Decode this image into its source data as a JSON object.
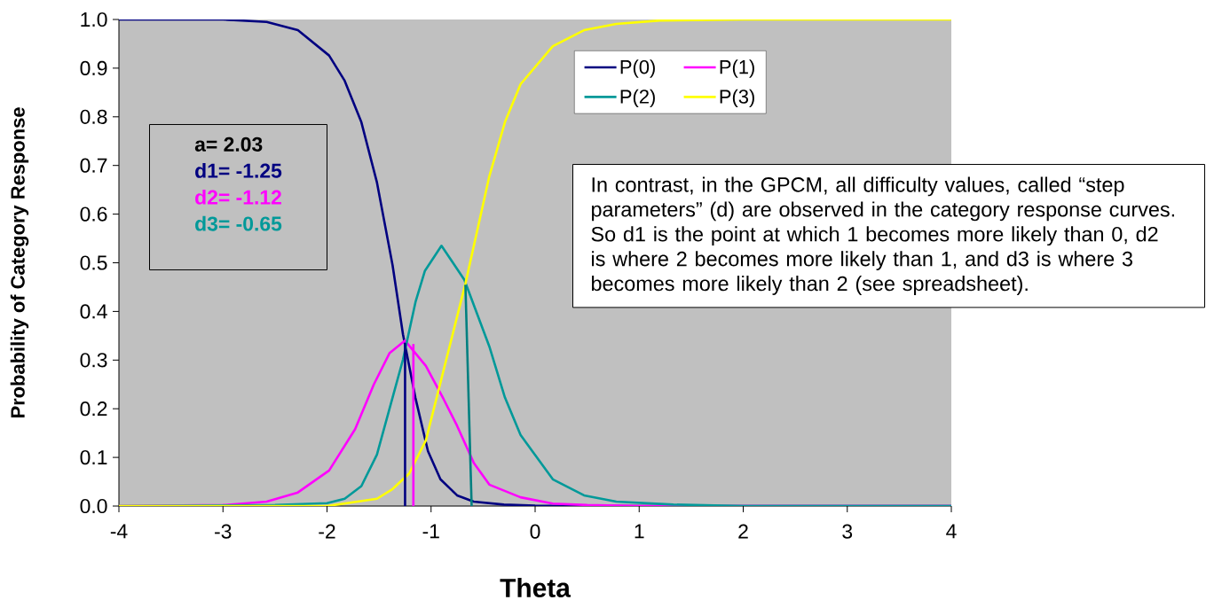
{
  "chart_data": {
    "type": "line",
    "xlabel": "Theta",
    "ylabel": "Probability of  Category Response",
    "xlim": [
      -4,
      4
    ],
    "ylim": [
      0,
      1
    ],
    "xticks": [
      -4,
      -3,
      -2,
      -1,
      0,
      1,
      2,
      3,
      4
    ],
    "yticks": [
      {
        "value": 0,
        "label": "0.0"
      },
      0.1,
      0.2,
      0.3,
      0.4,
      0.5,
      0.6,
      0.7,
      0.8,
      0.9,
      {
        "value": 1,
        "label": "1.0"
      }
    ],
    "legend": "top right",
    "line_style": "solid",
    "series": [
      {
        "name": "P(0)",
        "color": "#000080",
        "x": [
          -4,
          -3,
          -2.58,
          -2.28,
          -1.98,
          -1.83,
          -1.67,
          -1.52,
          -1.37,
          -1.27,
          -1.15,
          -1.03,
          -0.91,
          -0.75,
          -0.59,
          -0.3,
          0,
          1,
          2,
          4
        ],
        "values": [
          1,
          1,
          0.995,
          0.978,
          0.926,
          0.874,
          0.789,
          0.665,
          0.495,
          0.353,
          0.222,
          0.113,
          0.055,
          0.022,
          0.009,
          0.003,
          0.001,
          0,
          0,
          0
        ]
      },
      {
        "name": "P(1)",
        "color": "#ff00ff",
        "x": [
          -4,
          -3,
          -2.58,
          -2.28,
          -1.98,
          -1.73,
          -1.55,
          -1.4,
          -1.25,
          -1.15,
          -1.05,
          -0.88,
          -0.75,
          -0.59,
          -0.44,
          -0.14,
          0.17,
          0.5,
          1,
          2,
          4
        ],
        "values": [
          0,
          0.002,
          0.009,
          0.028,
          0.073,
          0.158,
          0.25,
          0.314,
          0.34,
          0.314,
          0.288,
          0.22,
          0.165,
          0.089,
          0.044,
          0.018,
          0.005,
          0.002,
          0,
          0,
          0
        ]
      },
      {
        "name": "P(2)",
        "color": "#009999",
        "x": [
          -4,
          -2.5,
          -2,
          -1.83,
          -1.67,
          -1.52,
          -1.37,
          -1.27,
          -1.15,
          -1.06,
          -0.9,
          -0.68,
          -0.44,
          -0.29,
          -0.14,
          0.17,
          0.47,
          0.78,
          1.33,
          2,
          4
        ],
        "values": [
          0,
          0.002,
          0.006,
          0.015,
          0.041,
          0.106,
          0.223,
          0.301,
          0.419,
          0.483,
          0.535,
          0.465,
          0.328,
          0.223,
          0.146,
          0.055,
          0.022,
          0.009,
          0.003,
          0,
          0
        ]
      },
      {
        "name": "P(3)",
        "color": "#ffff00",
        "x": [
          -4,
          -2,
          -1.52,
          -1.37,
          -1.21,
          -1.05,
          -0.9,
          -0.67,
          -0.44,
          -0.29,
          -0.14,
          0.17,
          0.47,
          0.78,
          1.2,
          2,
          4
        ],
        "values": [
          0,
          0,
          0.015,
          0.035,
          0.067,
          0.135,
          0.262,
          0.457,
          0.678,
          0.789,
          0.867,
          0.945,
          0.978,
          0.991,
          0.998,
          1,
          1
        ]
      },
      {
        "color": "#000080",
        "x": [
          -1.25,
          -1.25
        ],
        "values": [
          0.335,
          0
        ]
      },
      {
        "color": "#ff00ff",
        "x": [
          -1.17,
          -1.17
        ],
        "values": [
          0.333,
          0
        ]
      },
      {
        "color": "#008080",
        "x": [
          -0.67,
          -0.61
        ],
        "values": [
          0.455,
          0
        ]
      }
    ],
    "annotations": [
      "a=     2.03",
      "d1=  -1.25",
      "d2=  -1.12",
      "d3=  -0.65",
      "In contrast, in the GPCM, all difficulty values, called “step parameters” (d) are observed in the category response curves. So d1 is the point at which 1 becomes more likely than 0, d2 is where 2 becomes more likely than 1, and d3 is where 3 becomes more likely than 2 (see spreadsheet)."
    ]
  }
}
